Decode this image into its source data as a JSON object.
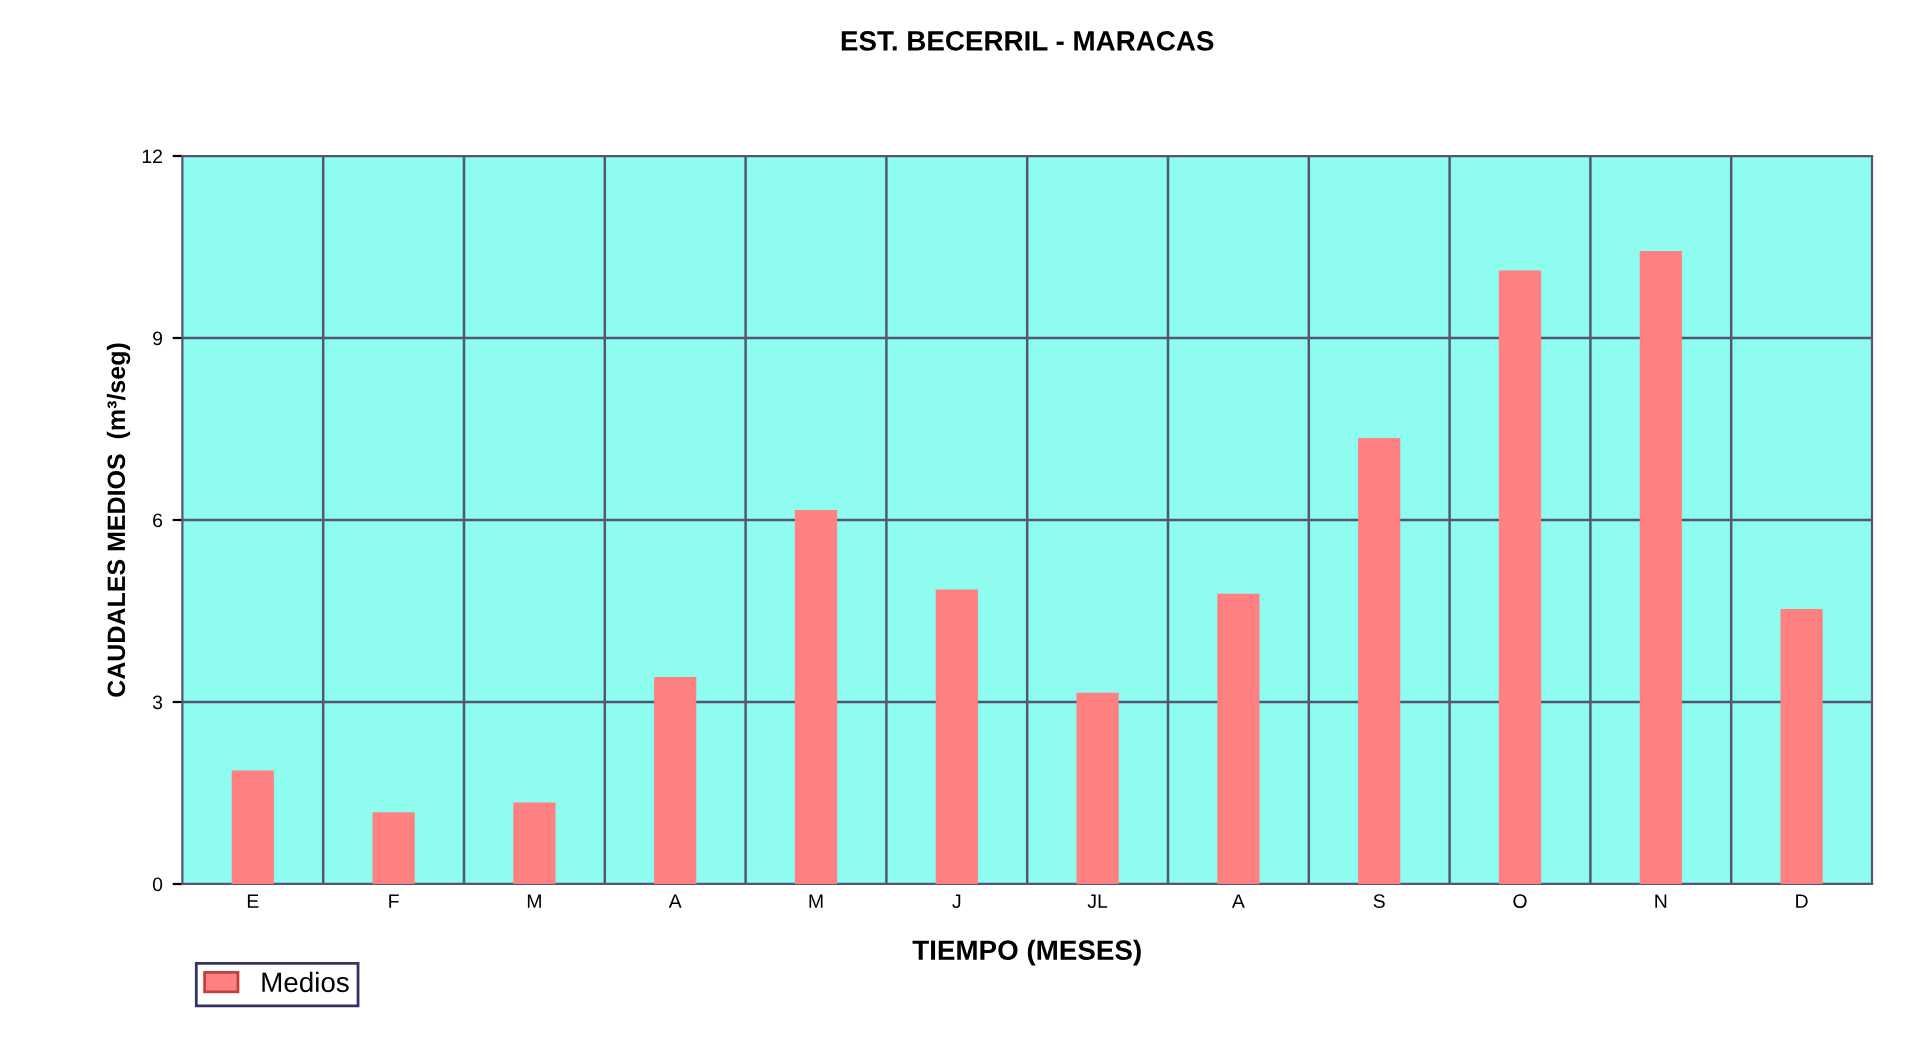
{
  "chart_data": {
    "type": "bar",
    "title": "EST. BECERRIL - MARACAS",
    "xlabel": "TIEMPO (MESES)",
    "ylabel": "CAUDALES MEDIOS  (m³/seg)",
    "categories": [
      "E",
      "F",
      "M",
      "A",
      "M",
      "J",
      "JL",
      "A",
      "S",
      "O",
      "N",
      "D"
    ],
    "series": [
      {
        "name": "Medios",
        "color": "#ff8080",
        "values": [
          1.85,
          1.16,
          1.32,
          3.39,
          6.14,
          4.83,
          3.13,
          4.76,
          7.33,
          10.09,
          10.41,
          4.51
        ]
      }
    ],
    "ylim": [
      0,
      12
    ],
    "yticks": [
      0,
      3,
      6,
      9,
      12
    ],
    "grid": true,
    "legend": "bottom left"
  }
}
